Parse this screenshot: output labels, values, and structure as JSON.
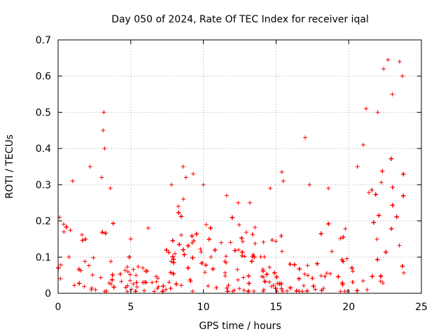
{
  "chart_data": {
    "type": "scatter",
    "title": "Day 050 of 2024, Rate Of TEC Index for receiver iqal",
    "xlabel": "GPS time / hours",
    "ylabel": "ROTI / TECUs",
    "xlim": [
      0,
      25
    ],
    "ylim": [
      0,
      0.7
    ],
    "x_ticks": [
      "0",
      "5",
      "10",
      "15",
      "20",
      "25"
    ],
    "y_ticks": [
      "0",
      "0.1",
      "0.2",
      "0.3",
      "0.4",
      "0.5",
      "0.6",
      "0.7"
    ],
    "grid": true,
    "marker": "plus",
    "color": "#ff0000",
    "data_span_hours": [
      0,
      23.9
    ],
    "series": [
      {
        "name": "ROTI",
        "envelope_note": "dense cloud of several thousand points; listed values are the notable peaks read from the figure",
        "x": [
          0.1,
          0.4,
          1.0,
          2.2,
          3.0,
          3.1,
          3.15,
          3.2,
          3.6,
          5.0,
          6.2,
          7.8,
          8.6,
          8.8,
          9.3,
          10.0,
          10.2,
          11.6,
          12.4,
          13.2,
          14.6,
          15.4,
          15.5,
          17.0,
          17.3,
          18.6,
          20.6,
          21.0,
          21.2,
          22.0,
          22.4,
          22.7,
          23.0,
          23.5,
          23.7
        ],
        "y": [
          0.21,
          0.17,
          0.31,
          0.35,
          0.32,
          0.45,
          0.5,
          0.4,
          0.29,
          0.15,
          0.18,
          0.3,
          0.35,
          0.32,
          0.33,
          0.3,
          0.19,
          0.27,
          0.25,
          0.25,
          0.29,
          0.335,
          0.31,
          0.43,
          0.3,
          0.29,
          0.35,
          0.41,
          0.51,
          0.5,
          0.62,
          0.645,
          0.55,
          0.64,
          0.6
        ]
      }
    ],
    "activity_profile": {
      "hours": [
        0,
        0.5,
        1,
        1.5,
        2,
        2.5,
        3,
        3.5,
        4,
        4.5,
        5,
        5.5,
        6,
        6.5,
        7,
        7.5,
        8,
        8.5,
        9,
        9.5,
        10,
        10.5,
        11,
        11.5,
        12,
        12.5,
        13,
        13.5,
        14,
        14.5,
        15,
        15.5,
        16,
        16.5,
        17,
        17.5,
        18,
        18.5,
        19,
        19.5,
        20,
        20.5,
        21,
        21.5,
        22,
        22.5,
        23,
        23.5,
        23.9
      ],
      "typical_max": [
        0.2,
        0.17,
        0.25,
        0.2,
        0.25,
        0.22,
        0.3,
        0.22,
        0.15,
        0.1,
        0.1,
        0.08,
        0.06,
        0.05,
        0.06,
        0.15,
        0.22,
        0.28,
        0.22,
        0.15,
        0.22,
        0.18,
        0.2,
        0.16,
        0.2,
        0.18,
        0.22,
        0.18,
        0.2,
        0.14,
        0.14,
        0.15,
        0.12,
        0.08,
        0.07,
        0.08,
        0.15,
        0.2,
        0.18,
        0.18,
        0.2,
        0.28,
        0.35,
        0.3,
        0.4,
        0.5,
        0.45,
        0.48,
        0.3
      ]
    }
  }
}
